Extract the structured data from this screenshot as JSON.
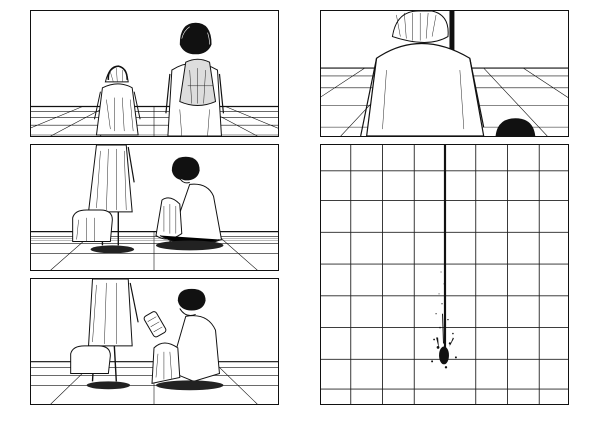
{
  "page": {
    "panels": [
      {
        "id": "panel-1",
        "scene": "two-children-standing-back-view"
      },
      {
        "id": "panel-2",
        "scene": "child-crouching-beside-bag"
      },
      {
        "id": "panel-3",
        "scene": "child-drinking-from-bottle"
      },
      {
        "id": "panel-4",
        "scene": "closeup-child-back-view"
      },
      {
        "id": "panel-5",
        "scene": "grid-wall-with-ink-splatter"
      }
    ]
  }
}
